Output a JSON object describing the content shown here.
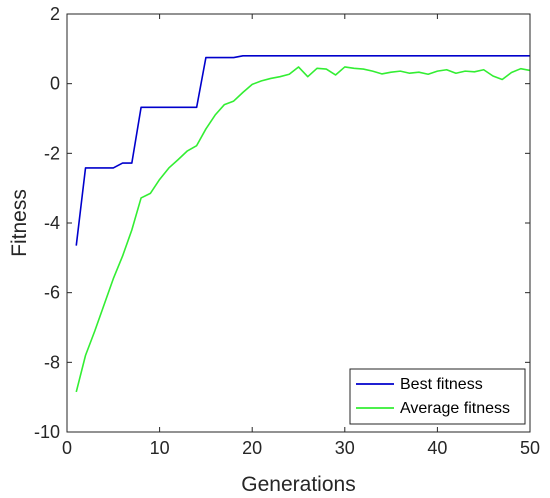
{
  "chart_data": {
    "type": "line",
    "title": "",
    "xlabel": "Generations",
    "ylabel": "Fitness",
    "xlim": [
      0,
      50
    ],
    "ylim": [
      -10,
      2
    ],
    "xticks": [
      0,
      10,
      20,
      30,
      40,
      50
    ],
    "yticks": [
      -10,
      -8,
      -6,
      -4,
      -2,
      0,
      2
    ],
    "grid": false,
    "legend_position": "bottom-right",
    "series": [
      {
        "name": "Best fitness",
        "color": "#0000cc",
        "x": [
          1,
          2,
          3,
          4,
          5,
          6,
          7,
          8,
          9,
          10,
          11,
          12,
          13,
          14,
          15,
          16,
          17,
          18,
          19,
          20,
          21,
          22,
          23,
          24,
          25,
          26,
          27,
          28,
          29,
          30,
          31,
          32,
          33,
          34,
          35,
          36,
          37,
          38,
          39,
          40,
          41,
          42,
          43,
          44,
          45,
          46,
          47,
          48,
          49,
          50
        ],
        "y": [
          -4.65,
          -2.42,
          -2.42,
          -2.42,
          -2.42,
          -2.28,
          -2.28,
          -0.68,
          -0.68,
          -0.68,
          -0.68,
          -0.68,
          -0.68,
          -0.68,
          0.75,
          0.75,
          0.75,
          0.75,
          0.8,
          0.8,
          0.8,
          0.8,
          0.8,
          0.8,
          0.8,
          0.8,
          0.8,
          0.8,
          0.8,
          0.8,
          0.8,
          0.8,
          0.8,
          0.8,
          0.8,
          0.8,
          0.8,
          0.8,
          0.8,
          0.8,
          0.8,
          0.8,
          0.8,
          0.8,
          0.8,
          0.8,
          0.8,
          0.8,
          0.8,
          0.8
        ]
      },
      {
        "name": "Average fitness",
        "color": "#33ee33",
        "x": [
          1,
          2,
          3,
          4,
          5,
          6,
          7,
          8,
          9,
          10,
          11,
          12,
          13,
          14,
          15,
          16,
          17,
          18,
          19,
          20,
          21,
          22,
          23,
          24,
          25,
          26,
          27,
          28,
          29,
          30,
          31,
          32,
          33,
          34,
          35,
          36,
          37,
          38,
          39,
          40,
          41,
          42,
          43,
          44,
          45,
          46,
          47,
          48,
          49,
          50
        ],
        "y": [
          -8.85,
          -7.8,
          -7.1,
          -6.35,
          -5.6,
          -4.95,
          -4.2,
          -3.28,
          -3.15,
          -2.75,
          -2.42,
          -2.18,
          -1.93,
          -1.78,
          -1.3,
          -0.9,
          -0.6,
          -0.5,
          -0.25,
          -0.02,
          0.08,
          0.15,
          0.2,
          0.27,
          0.48,
          0.2,
          0.44,
          0.42,
          0.25,
          0.48,
          0.44,
          0.42,
          0.36,
          0.28,
          0.33,
          0.36,
          0.3,
          0.33,
          0.27,
          0.36,
          0.4,
          0.3,
          0.36,
          0.34,
          0.4,
          0.22,
          0.12,
          0.32,
          0.43,
          0.38
        ]
      }
    ]
  }
}
